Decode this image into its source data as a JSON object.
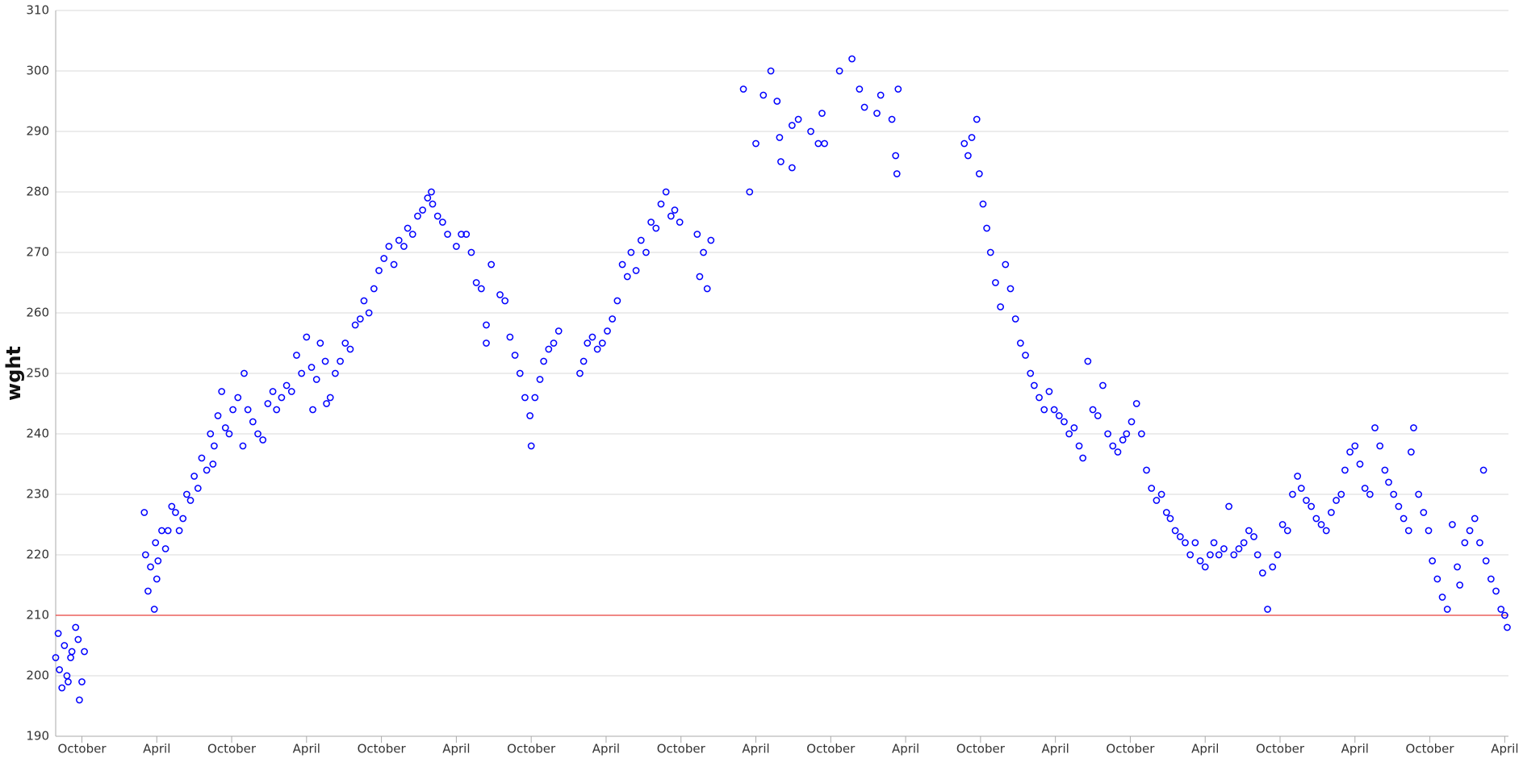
{
  "chart_data": {
    "type": "scatter",
    "y_label": "wght",
    "color": "#0000ff",
    "grid": true,
    "reference_line": {
      "value": 210,
      "color": "#e8413c"
    },
    "xlim": [
      -2.1,
      114.3
    ],
    "ylim": [
      190,
      310
    ],
    "yticks": [
      190,
      200,
      210,
      220,
      230,
      240,
      250,
      260,
      270,
      280,
      290,
      300,
      310
    ],
    "xticks": [
      {
        "value": 0,
        "label": "October"
      },
      {
        "value": 6,
        "label": "April"
      },
      {
        "value": 12,
        "label": "October"
      },
      {
        "value": 18,
        "label": "April"
      },
      {
        "value": 24,
        "label": "October"
      },
      {
        "value": 30,
        "label": "April"
      },
      {
        "value": 36,
        "label": "October"
      },
      {
        "value": 42,
        "label": "April"
      },
      {
        "value": 48,
        "label": "October"
      },
      {
        "value": 54,
        "label": "April"
      },
      {
        "value": 60,
        "label": "October"
      },
      {
        "value": 66,
        "label": "April"
      },
      {
        "value": 72,
        "label": "October"
      },
      {
        "value": 78,
        "label": "April"
      },
      {
        "value": 84,
        "label": "October"
      },
      {
        "value": 90,
        "label": "April"
      },
      {
        "value": 96,
        "label": "October"
      },
      {
        "value": 102,
        "label": "April"
      },
      {
        "value": 108,
        "label": "October"
      },
      {
        "value": 114,
        "label": "April"
      }
    ],
    "x": [
      -2.1,
      -1.9,
      -1.8,
      -1.6,
      -1.4,
      -1.2,
      -1.1,
      -0.9,
      -0.8,
      -0.5,
      -0.3,
      -0.2,
      0,
      0.2,
      5.0,
      5.1,
      5.3,
      5.5,
      5.8,
      5.9,
      6.1,
      6.4,
      6.7,
      6.9,
      7.2,
      7.5,
      7.8,
      8.1,
      8.4,
      8.7,
      9.0,
      9.3,
      9.6,
      10.0,
      10.3,
      10.6,
      10.9,
      11.2,
      11.5,
      11.8,
      12.1,
      12.5,
      12.9,
      13.3,
      13.7,
      14.1,
      14.5,
      14.9,
      15.3,
      15.6,
      16.0,
      16.4,
      16.8,
      17.2,
      17.6,
      18.0,
      18.4,
      18.8,
      19.1,
      19.5,
      19.9,
      20.3,
      20.7,
      21.1,
      21.5,
      21.9,
      22.3,
      22.6,
      23.0,
      23.4,
      23.8,
      24.2,
      24.6,
      25.0,
      25.4,
      25.8,
      26.1,
      26.5,
      26.9,
      27.3,
      27.7,
      28.1,
      28.5,
      28.9,
      29.3,
      6.0,
      10.5,
      13.0,
      18.5,
      19.6,
      28.0,
      30.0,
      30.4,
      30.8,
      31.2,
      31.6,
      32.0,
      32.4,
      32.4,
      32.8,
      33.5,
      33.9,
      34.3,
      34.7,
      35.1,
      35.5,
      35.9,
      36.0,
      36.3,
      36.7,
      37.0,
      37.4,
      37.8,
      38.2,
      39.9,
      40.2,
      40.5,
      40.9,
      41.3,
      41.7,
      42.1,
      42.5,
      42.9,
      43.3,
      43.7,
      44.0,
      44.4,
      44.8,
      45.2,
      45.6,
      46.0,
      46.4,
      46.8,
      47.2,
      47.5,
      47.9,
      49.3,
      49.5,
      49.8,
      50.1,
      50.4,
      53.0,
      53.5,
      54.0,
      54.6,
      55.2,
      55.7,
      55.9,
      56.0,
      56.9,
      56.9,
      57.4,
      58.4,
      59.0,
      59.3,
      59.5,
      60.7,
      61.7,
      62.3,
      62.7,
      63.7,
      64.0,
      64.9,
      65.2,
      65.3,
      65.4,
      70.7,
      71.0,
      71.3,
      71.7,
      71.9,
      72.2,
      72.5,
      72.8,
      73.2,
      73.6,
      74.0,
      74.4,
      74.8,
      75.2,
      75.6,
      76.0,
      76.3,
      76.7,
      77.1,
      77.5,
      77.9,
      78.3,
      78.7,
      79.1,
      79.5,
      79.9,
      80.2,
      80.6,
      81.0,
      81.4,
      81.8,
      82.2,
      82.6,
      83.0,
      83.4,
      83.7,
      84.1,
      84.5,
      84.9,
      85.3,
      85.7,
      86.1,
      86.5,
      86.9,
      87.2,
      87.6,
      88.0,
      88.4,
      88.8,
      89.2,
      89.6,
      90.0,
      90.4,
      90.7,
      91.1,
      91.5,
      91.9,
      92.3,
      92.7,
      93.1,
      93.5,
      93.9,
      94.2,
      94.6,
      95.0,
      95.4,
      95.8,
      96.2,
      96.6,
      97.0,
      97.4,
      97.7,
      98.1,
      98.5,
      98.9,
      99.3,
      99.7,
      100.1,
      100.5,
      100.9,
      101.2,
      101.6,
      102.0,
      102.4,
      102.8,
      103.2,
      103.6,
      104.0,
      104.4,
      104.7,
      105.1,
      105.5,
      105.9,
      106.3,
      106.5,
      106.7,
      107.1,
      107.5,
      107.9,
      108.2,
      108.6,
      109.0,
      109.4,
      109.8,
      110.2,
      110.4,
      110.8,
      111.2,
      111.6,
      112.0,
      112.3,
      112.5,
      112.9,
      113.3,
      113.7,
      114.0,
      114.2
    ],
    "values": [
      203,
      207,
      201,
      198,
      205,
      200,
      199,
      203,
      204,
      208,
      206,
      196,
      199,
      204,
      227,
      220,
      214,
      218,
      211,
      222,
      219,
      224,
      221,
      224,
      228,
      227,
      224,
      226,
      230,
      229,
      233,
      231,
      236,
      234,
      240,
      238,
      243,
      247,
      241,
      240,
      244,
      246,
      238,
      244,
      242,
      240,
      239,
      245,
      247,
      244,
      246,
      248,
      247,
      253,
      250,
      256,
      251,
      249,
      255,
      252,
      246,
      250,
      252,
      255,
      254,
      258,
      259,
      262,
      260,
      264,
      267,
      269,
      271,
      268,
      272,
      271,
      274,
      273,
      276,
      277,
      279,
      278,
      276,
      275,
      273,
      216,
      235,
      250,
      244,
      245,
      280,
      271,
      273,
      273,
      270,
      265,
      264,
      258,
      255,
      268,
      263,
      262,
      256,
      253,
      250,
      246,
      243,
      238,
      246,
      249,
      252,
      254,
      255,
      257,
      250,
      252,
      255,
      256,
      254,
      255,
      257,
      259,
      262,
      268,
      266,
      270,
      267,
      272,
      270,
      275,
      274,
      278,
      280,
      276,
      277,
      275,
      273,
      266,
      270,
      264,
      272,
      297,
      280,
      288,
      296,
      300,
      295,
      289,
      285,
      284,
      291,
      292,
      290,
      288,
      293,
      288,
      300,
      302,
      297,
      294,
      293,
      296,
      292,
      286,
      283,
      297,
      288,
      286,
      289,
      292,
      283,
      278,
      274,
      270,
      265,
      261,
      268,
      264,
      259,
      255,
      253,
      250,
      248,
      246,
      244,
      247,
      244,
      243,
      242,
      240,
      241,
      238,
      236,
      252,
      244,
      243,
      248,
      240,
      238,
      237,
      239,
      240,
      242,
      245,
      240,
      234,
      231,
      229,
      230,
      227,
      226,
      224,
      223,
      222,
      220,
      222,
      219,
      218,
      220,
      222,
      220,
      221,
      228,
      220,
      221,
      222,
      224,
      223,
      220,
      217,
      211,
      218,
      220,
      225,
      224,
      230,
      233,
      231,
      229,
      228,
      226,
      225,
      224,
      227,
      229,
      230,
      234,
      237,
      238,
      235,
      231,
      230,
      241,
      238,
      234,
      232,
      230,
      228,
      226,
      224,
      237,
      241,
      230,
      227,
      224,
      219,
      216,
      213,
      211,
      225,
      218,
      215,
      222,
      224,
      226,
      222,
      234,
      219,
      216,
      214,
      211,
      210,
      208
    ]
  }
}
